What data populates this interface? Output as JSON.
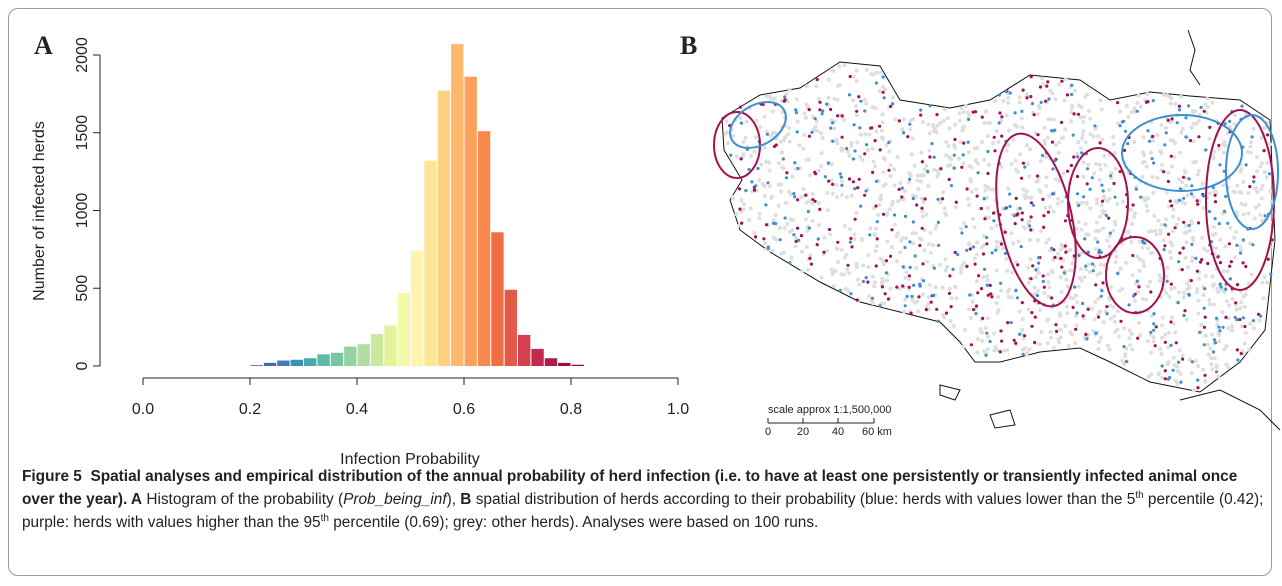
{
  "panel_labels": [
    "A",
    "B"
  ],
  "chart_data": {
    "type": "histogram",
    "xlabel": "Infection Probability",
    "ylabel": "Number of infected herds",
    "bins": [
      0.2,
      0.225,
      0.25,
      0.275,
      0.3,
      0.325,
      0.35,
      0.375,
      0.4,
      0.425,
      0.45,
      0.475,
      0.5,
      0.525,
      0.55,
      0.575,
      0.6,
      0.625,
      0.65,
      0.675,
      0.7,
      0.725,
      0.75,
      0.775,
      0.8,
      0.825
    ],
    "values": [
      5,
      20,
      35,
      40,
      50,
      75,
      85,
      125,
      140,
      205,
      260,
      470,
      740,
      1320,
      1770,
      2070,
      1860,
      1510,
      860,
      490,
      200,
      110,
      50,
      20,
      8
    ],
    "colors": [
      "#5e4fa2",
      "#4a64ad",
      "#3f7bb6",
      "#3892b9",
      "#4aa8b2",
      "#5ebaa6",
      "#78c6a4",
      "#95d2a3",
      "#b1dda2",
      "#cbe89f",
      "#e4f39a",
      "#f3f8aa",
      "#fef4ad",
      "#fee597",
      "#fed081",
      "#fdb96b",
      "#fca15b",
      "#f7894f",
      "#f16d43",
      "#e45a48",
      "#d6404e",
      "#c42a4f",
      "#ad1c4b",
      "#961043",
      "#9e0142"
    ],
    "xlim": [
      0,
      1
    ],
    "xticks": [
      {
        "value": 0,
        "label": "0.0"
      },
      {
        "value": 0.2,
        "label": "0.2"
      },
      {
        "value": 0.4,
        "label": "0.4"
      },
      {
        "value": 0.6,
        "label": "0.6"
      },
      {
        "value": 0.8,
        "label": "0.8"
      },
      {
        "value": 1,
        "label": "1.0"
      }
    ],
    "ylim": [
      0,
      2000
    ],
    "yticks": [
      0,
      500,
      1000,
      1500,
      2000
    ]
  },
  "map": {
    "scale_title": "scale approx 1:1,500,000",
    "scale_labels": [
      "0",
      "20",
      "40",
      "60 km"
    ]
  },
  "caption": {
    "label": "Figure 5",
    "title": "Spatial analyses and empirical distribution of the annual probability of herd infection (i.e. to have at least one persistently or transiently infected animal once over the year).",
    "parts": [
      " A",
      " Histogram of the probability (",
      "Prob_being_inf",
      "),",
      " B",
      " spatial distribution of herds according to their probability (blue: herds with values lower than the 5",
      "th",
      " percentile (0.42); purple: herds with values higher than the 95",
      "th",
      " percentile (0.69); grey: other herds). Analyses were based on 100 runs."
    ]
  }
}
